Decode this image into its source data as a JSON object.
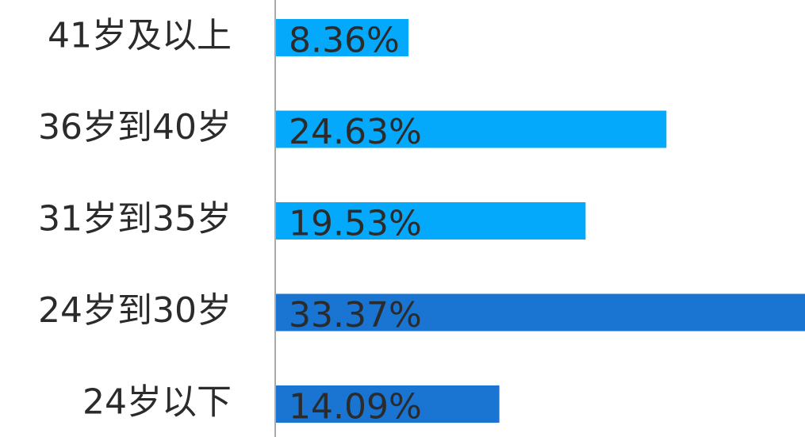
{
  "chart_data": {
    "type": "barh",
    "categories": [
      "41岁及以上",
      "36岁到40岁",
      "31岁到35岁",
      "24岁到30岁",
      "24岁以下"
    ],
    "values": [
      8.36,
      24.63,
      19.53,
      33.37,
      14.09
    ],
    "value_labels": [
      "8.36%",
      "24.63%",
      "19.53%",
      "33.37%",
      "14.09%"
    ],
    "colors": [
      "#05a9fb",
      "#05a9fb",
      "#05a9fb",
      "#1a74d2",
      "#1a74d2"
    ],
    "xlim": [
      0,
      33.37
    ]
  }
}
